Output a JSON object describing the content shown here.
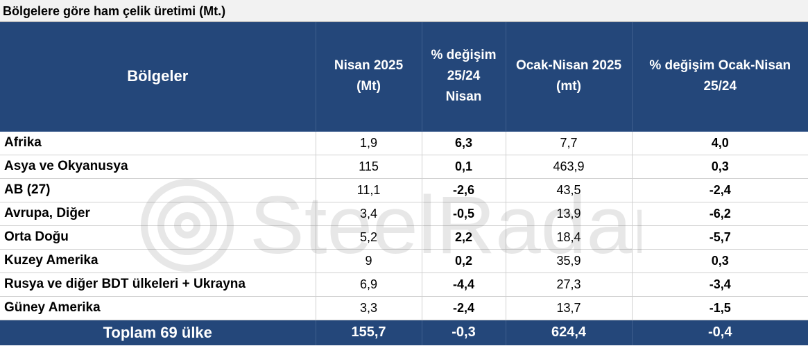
{
  "title": "Bölgelere göre ham çelik üretimi (Mt.)",
  "watermark_text": "SteelRadar",
  "headers": {
    "region": "Bölgeler",
    "col1_line1": "Nisan 2025",
    "col1_line2": "(Mt)",
    "col2_line1": "% değişim",
    "col2_line2": "25/24",
    "col2_line3": "Nisan",
    "col3_line1": "Ocak-Nisan 2025",
    "col3_line2": "(mt)",
    "col4_line1": "% değişim Ocak-Nisan",
    "col4_line2": "25/24"
  },
  "rows": [
    {
      "region": "Afrika",
      "apr": "1,9",
      "apr_change": "6,3",
      "ytd": "7,7",
      "ytd_change": "4,0"
    },
    {
      "region": "Asya ve Okyanusya",
      "apr": "115",
      "apr_change": "0,1",
      "ytd": "463,9",
      "ytd_change": "0,3"
    },
    {
      "region": "AB (27)",
      "apr": "11,1",
      "apr_change": "-2,6",
      "ytd": "43,5",
      "ytd_change": "-2,4"
    },
    {
      "region": "Avrupa, Diğer",
      "apr": "3,4",
      "apr_change": "-0,5",
      "ytd": "13,9",
      "ytd_change": "-6,2"
    },
    {
      "region": "Orta Doğu",
      "apr": "5,2",
      "apr_change": "2,2",
      "ytd": "18,4",
      "ytd_change": "-5,7"
    },
    {
      "region": "Kuzey Amerika",
      "apr": "9",
      "apr_change": "0,2",
      "ytd": "35,9",
      "ytd_change": "0,3"
    },
    {
      "region": "Rusya ve diğer BDT ülkeleri + Ukrayna",
      "apr": "6,9",
      "apr_change": "-4,4",
      "ytd": "27,3",
      "ytd_change": "-3,4"
    },
    {
      "region": "Güney Amerika",
      "apr": "3,3",
      "apr_change": "-2,4",
      "ytd": "13,7",
      "ytd_change": "-1,5"
    }
  ],
  "total": {
    "label": "Toplam 69 ülke",
    "apr": "155,7",
    "apr_change": "-0,3",
    "ytd": "624,4",
    "ytd_change": "-0,4"
  },
  "colors": {
    "header_bg": "#24477a",
    "title_bg": "#f2f2f2"
  }
}
